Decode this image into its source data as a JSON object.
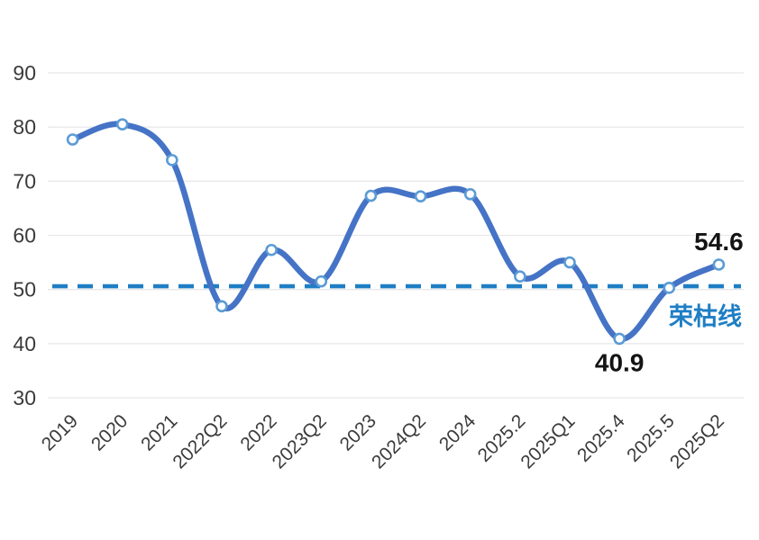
{
  "chart_data": {
    "type": "line",
    "title": "",
    "categories": [
      "2019",
      "2020",
      "2021",
      "2022Q2",
      "2022",
      "2023Q2",
      "2023",
      "2024Q2",
      "2024",
      "2025.2",
      "2025Q1",
      "2025.4",
      "2025.5",
      "2025Q2"
    ],
    "values": [
      77.7,
      80.5,
      73.9,
      46.9,
      57.3,
      51.5,
      67.3,
      67.2,
      67.6,
      52.4,
      55.0,
      40.9,
      50.3,
      54.6
    ],
    "y_ticks": [
      30,
      40,
      50,
      60,
      70,
      80,
      90
    ],
    "ylim": [
      30,
      90
    ],
    "grid": true,
    "legend": false,
    "x_label_rotation": -45,
    "smooth": true,
    "annotations": [
      {
        "index": 13,
        "text": "54.6",
        "position": "above"
      },
      {
        "index": 11,
        "text": "40.9",
        "position": "below"
      }
    ],
    "reference_line": {
      "label": "荣枯线",
      "value": 50.6,
      "style": "dashed"
    }
  },
  "colors": {
    "line": "#4573C6",
    "marker_stroke": "#5B9BD5",
    "marker_fill": "#FFFFFF",
    "reference": "#1E7EC4",
    "grid": "#E8E8E8",
    "axis_text": "#3B3B3B",
    "annotation_text": "#141414",
    "background": "#FFFFFF"
  }
}
